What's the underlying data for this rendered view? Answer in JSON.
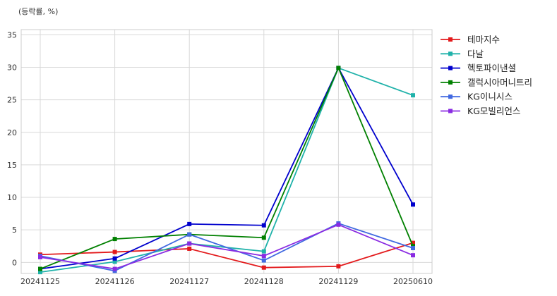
{
  "chart_data": {
    "type": "line",
    "ylabel": "(등락률, %)",
    "categories": [
      "20241125",
      "20241126",
      "20241127",
      "20241128",
      "20241129",
      "20250610"
    ],
    "ylim": [
      -1.7,
      35.8
    ],
    "yticks": [
      0,
      5,
      10,
      15,
      20,
      25,
      30,
      35
    ],
    "grid": true,
    "legend_position": "right-top outside",
    "series": [
      {
        "name": "테마지수",
        "color": "#e31a1c",
        "values": [
          1.2,
          1.6,
          2.1,
          -0.8,
          -0.6,
          3.0
        ]
      },
      {
        "name": "다날",
        "color": "#20b2aa",
        "values": [
          -1.5,
          0.1,
          2.9,
          1.7,
          29.9,
          25.7
        ]
      },
      {
        "name": "헥토파이낸셜",
        "color": "#0000cd",
        "values": [
          -1.0,
          0.6,
          5.9,
          5.7,
          29.9,
          8.9
        ]
      },
      {
        "name": "갤럭시아머니트리",
        "color": "#008000",
        "values": [
          -1.0,
          3.6,
          4.3,
          3.8,
          29.9,
          2.5
        ]
      },
      {
        "name": "KG이니시스",
        "color": "#4169e1",
        "values": [
          1.0,
          -1.3,
          4.3,
          0.3,
          6.0,
          2.2
        ]
      },
      {
        "name": "KG모빌리언스",
        "color": "#8a2be2",
        "values": [
          0.8,
          -1.0,
          2.9,
          1.0,
          5.8,
          1.1
        ]
      }
    ]
  }
}
